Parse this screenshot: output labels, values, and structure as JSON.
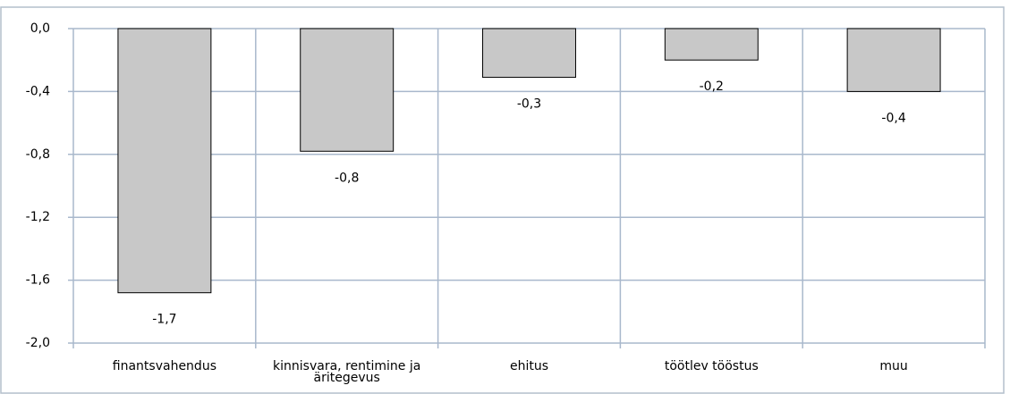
{
  "chart_data": {
    "type": "bar",
    "categories": [
      "finantsvahendus",
      "kinnisvara, rentimine ja äritegevus",
      "ehitus",
      "töötlev tööstus",
      "muu"
    ],
    "values": [
      -1.68,
      -0.78,
      -0.31,
      -0.2,
      -0.4
    ],
    "value_labels": [
      "-1,7",
      "-0,8",
      "-0,3",
      "-0,2",
      "-0,4"
    ],
    "color": "#c8c8c8",
    "ylim": [
      -2.0,
      0.0
    ],
    "yticks": [
      {
        "value": 0.0,
        "label": "0,0"
      },
      {
        "value": -0.4,
        "label": "-0,4"
      },
      {
        "value": -0.8,
        "label": "-0,8"
      },
      {
        "value": -1.2,
        "label": "-1,2"
      },
      {
        "value": -1.6,
        "label": "-1,6"
      },
      {
        "value": -2.0,
        "label": "-2,0"
      }
    ],
    "grid": true
  }
}
